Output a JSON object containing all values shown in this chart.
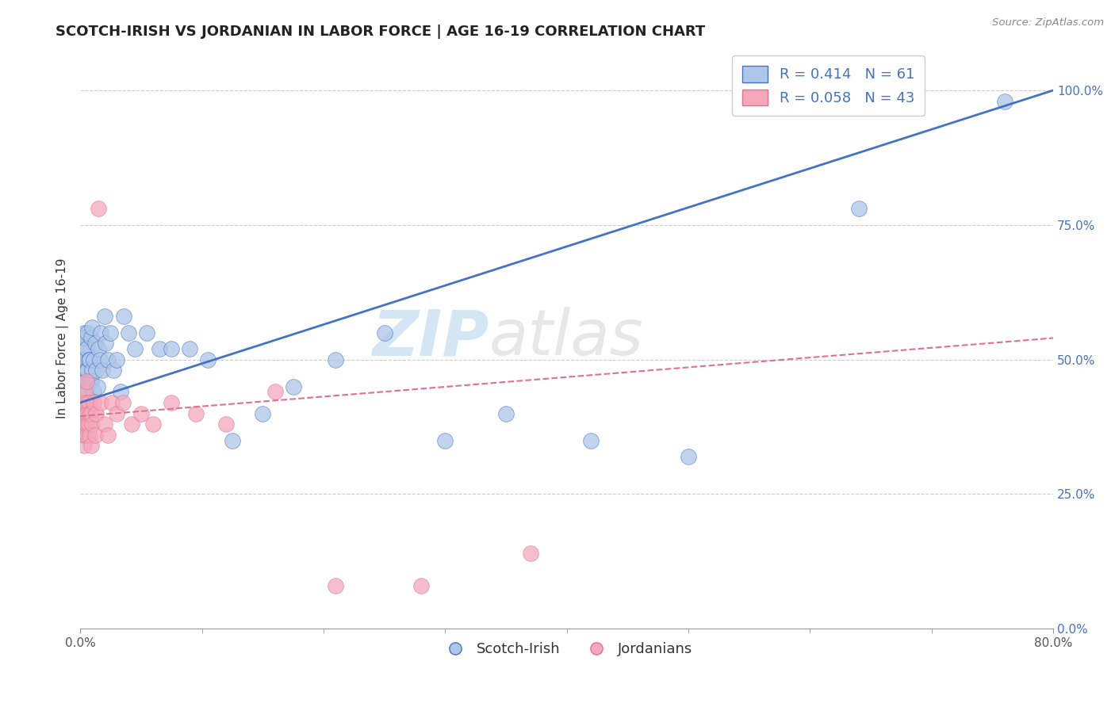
{
  "title": "SCOTCH-IRISH VS JORDANIAN IN LABOR FORCE | AGE 16-19 CORRELATION CHART",
  "source": "Source: ZipAtlas.com",
  "ylabel": "In Labor Force | Age 16-19",
  "xmin": 0.0,
  "xmax": 0.8,
  "ymin": 0.0,
  "ymax": 1.08,
  "x_tick_left_label": "0.0%",
  "x_tick_right_label": "80.0%",
  "y_ticks": [
    0.0,
    0.25,
    0.5,
    0.75,
    1.0
  ],
  "y_tick_labels": [
    "0.0%",
    "25.0%",
    "50.0%",
    "75.0%",
    "100.0%"
  ],
  "scotch_irish_R": 0.414,
  "scotch_irish_N": 61,
  "jordanian_R": 0.058,
  "jordanian_N": 43,
  "scotch_irish_color": "#aec6e8",
  "jordanian_color": "#f4a7bb",
  "line_scotch_irish_color": "#4472c4",
  "line_jordanian_color": "#e07090",
  "watermark_zip": "ZIP",
  "watermark_atlas": "atlas",
  "background_color": "#ffffff",
  "grid_color": "#cccccc",
  "title_fontsize": 13,
  "label_fontsize": 11,
  "tick_fontsize": 11,
  "legend_fontsize": 13,
  "scotch_irish_line_y0": 0.42,
  "scotch_irish_line_y1": 1.0,
  "jordanian_line_y0": 0.395,
  "jordanian_line_y1": 0.54,
  "scotch_irish_x": [
    0.001,
    0.001,
    0.002,
    0.002,
    0.002,
    0.003,
    0.003,
    0.003,
    0.003,
    0.004,
    0.004,
    0.004,
    0.005,
    0.005,
    0.005,
    0.006,
    0.006,
    0.006,
    0.007,
    0.007,
    0.008,
    0.008,
    0.009,
    0.009,
    0.01,
    0.01,
    0.011,
    0.011,
    0.012,
    0.013,
    0.014,
    0.015,
    0.016,
    0.017,
    0.018,
    0.02,
    0.021,
    0.023,
    0.025,
    0.027,
    0.03,
    0.033,
    0.036,
    0.04,
    0.045,
    0.055,
    0.065,
    0.075,
    0.09,
    0.105,
    0.125,
    0.15,
    0.175,
    0.21,
    0.25,
    0.3,
    0.35,
    0.42,
    0.5,
    0.64,
    0.76
  ],
  "scotch_irish_y": [
    0.48,
    0.52,
    0.46,
    0.5,
    0.54,
    0.44,
    0.48,
    0.52,
    0.55,
    0.46,
    0.5,
    0.54,
    0.42,
    0.48,
    0.52,
    0.44,
    0.48,
    0.55,
    0.46,
    0.5,
    0.42,
    0.5,
    0.46,
    0.54,
    0.48,
    0.56,
    0.44,
    0.5,
    0.53,
    0.48,
    0.45,
    0.52,
    0.5,
    0.55,
    0.48,
    0.58,
    0.53,
    0.5,
    0.55,
    0.48,
    0.5,
    0.44,
    0.58,
    0.55,
    0.52,
    0.55,
    0.52,
    0.52,
    0.52,
    0.5,
    0.35,
    0.4,
    0.45,
    0.5,
    0.55,
    0.35,
    0.4,
    0.35,
    0.32,
    0.78,
    0.98
  ],
  "jordanian_x": [
    0.001,
    0.001,
    0.002,
    0.002,
    0.002,
    0.003,
    0.003,
    0.003,
    0.004,
    0.004,
    0.004,
    0.005,
    0.005,
    0.005,
    0.006,
    0.006,
    0.007,
    0.007,
    0.008,
    0.008,
    0.009,
    0.009,
    0.01,
    0.011,
    0.012,
    0.013,
    0.015,
    0.017,
    0.02,
    0.023,
    0.026,
    0.03,
    0.035,
    0.042,
    0.05,
    0.06,
    0.075,
    0.095,
    0.12,
    0.16,
    0.21,
    0.28,
    0.37
  ],
  "jordanian_y": [
    0.4,
    0.42,
    0.36,
    0.38,
    0.42,
    0.34,
    0.38,
    0.42,
    0.36,
    0.4,
    0.44,
    0.38,
    0.42,
    0.46,
    0.36,
    0.4,
    0.38,
    0.42,
    0.36,
    0.4,
    0.34,
    0.4,
    0.38,
    0.42,
    0.36,
    0.4,
    0.78,
    0.42,
    0.38,
    0.36,
    0.42,
    0.4,
    0.42,
    0.38,
    0.4,
    0.38,
    0.42,
    0.4,
    0.38,
    0.44,
    0.08,
    0.08,
    0.14
  ]
}
